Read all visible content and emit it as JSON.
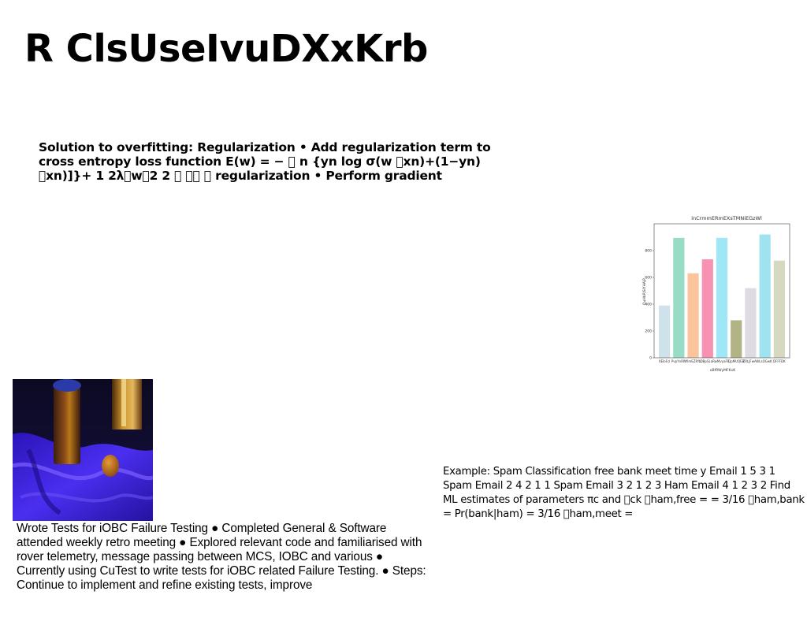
{
  "slide": {
    "title": "R ClsUseIvuDXxKrb",
    "paragraph_regularization": "Solution to overfitting: Regularization • Add regularization term to cross entropy loss function E(w) = − \u0000 n {yn log σ(w \u0000xn)+(1−yn) \u0000xn)]}+ 1 2λ\u0000w\u00002 2 \u0000 \u0000\u0000 \u0000 regularization • Perform gradient",
    "paragraph_ioc": "Wrote Tests for iOBC Failure Testing ● Completed General & Software attended weekly retro meeting ● Explored relevant code and familiarised with rover telemetry, message passing between MCS, IOBC and various ● Currently using CuTest to write tests for iOBC related Failure Testing. ● Steps: Continue to implement and refine existing tests, improve",
    "paragraph_spam": "Example: Spam Classification free bank meet time y Email 1 5 3 1 Spam Email 2 4 2 1 1 Spam Email 3 2 1 2 3 Ham Email 4 1 2 3 2 Find ML estimates of parameters πc and \u0000ck \u0000ham,free = = 3/16 \u0000ham,bank = Pr(bank|ham) = 3/16 \u0000ham,meet ="
  },
  "image": {
    "icon": "still-life-photo-icon",
    "colors": {
      "cloth": "#3a1fd6",
      "background": "#0c0a22",
      "bottle_amber": "#b8781a",
      "egg": "#c8791d"
    }
  },
  "chart_data": {
    "type": "bar",
    "title": "inCrmmERmEXsTMNiEGzWl",
    "xlabel": "oBfRWyMFKvK",
    "ylabel": "QuHbPJSiYHAjP",
    "categories": [
      "XEIoFcl",
      "PvpYnRW",
      "YlmEZRfb",
      "DBpSLaR",
      "wMvyaFE",
      "QpMUQEB",
      "ZRLJFwAK",
      "rLsOGwK",
      "DFFFDK"
    ],
    "values": [
      390,
      895,
      630,
      735,
      895,
      280,
      520,
      920,
      725
    ],
    "colors": [
      "#cfe1ea",
      "#98dcc6",
      "#fbc49c",
      "#f792b3",
      "#9ee7f6",
      "#b2b486",
      "#dedbe5",
      "#a0e3f0",
      "#d6d8c0"
    ],
    "ylim": [
      0,
      1000
    ],
    "yticks": [
      0,
      200,
      400,
      600,
      800
    ],
    "grid": false,
    "legend": "none"
  }
}
